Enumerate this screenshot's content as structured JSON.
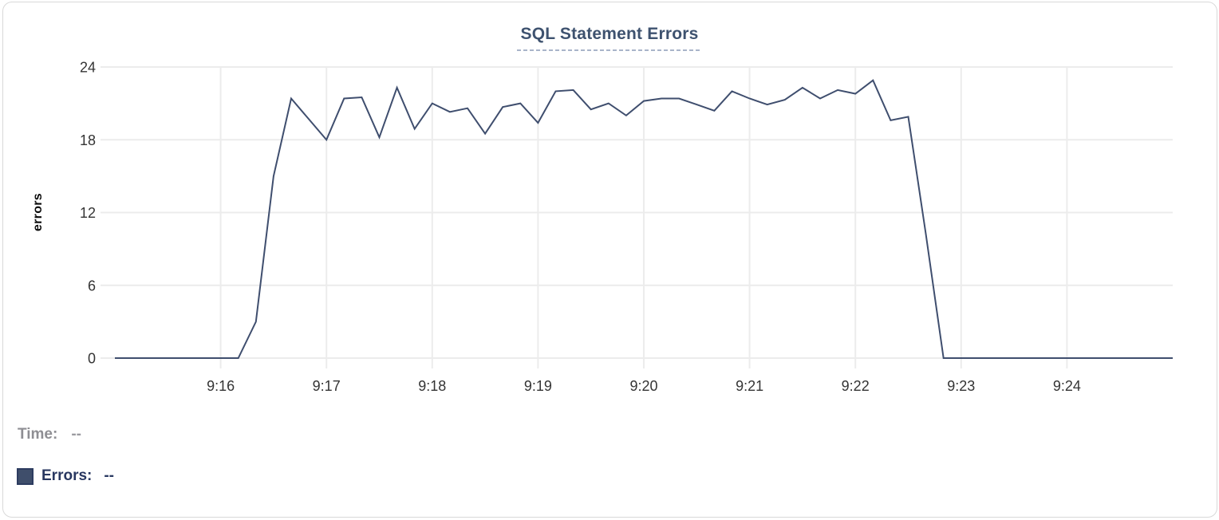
{
  "chart_data": {
    "type": "line",
    "title": "SQL Statement Errors",
    "xlabel": "",
    "ylabel": "errors",
    "ylim": [
      0,
      24
    ],
    "yticks": [
      0,
      6,
      12,
      18,
      24
    ],
    "xtick_labels": [
      "9:16",
      "9:17",
      "9:18",
      "9:19",
      "9:20",
      "9:21",
      "9:22",
      "9:23",
      "9:24"
    ],
    "x_range": [
      "9:15:00",
      "9:25:00"
    ],
    "interval_seconds": 10,
    "grid": true,
    "legend_position": "bottom-left",
    "series": [
      {
        "name": "Errors",
        "color": "#3f4e6e",
        "x": [
          "9:15:00",
          "9:15:10",
          "9:15:20",
          "9:15:30",
          "9:15:40",
          "9:15:50",
          "9:16:00",
          "9:16:10",
          "9:16:20",
          "9:16:30",
          "9:16:40",
          "9:16:50",
          "9:17:00",
          "9:17:10",
          "9:17:20",
          "9:17:30",
          "9:17:40",
          "9:17:50",
          "9:18:00",
          "9:18:10",
          "9:18:20",
          "9:18:30",
          "9:18:40",
          "9:18:50",
          "9:19:00",
          "9:19:10",
          "9:19:20",
          "9:19:30",
          "9:19:40",
          "9:19:50",
          "9:20:00",
          "9:20:10",
          "9:20:20",
          "9:20:30",
          "9:20:40",
          "9:20:50",
          "9:21:00",
          "9:21:10",
          "9:21:20",
          "9:21:30",
          "9:21:40",
          "9:21:50",
          "9:22:00",
          "9:22:10",
          "9:22:20",
          "9:22:30",
          "9:22:40",
          "9:22:50",
          "9:23:00",
          "9:23:10",
          "9:23:20",
          "9:23:30",
          "9:23:40",
          "9:23:50",
          "9:24:00",
          "9:24:10",
          "9:24:20",
          "9:24:30",
          "9:24:40",
          "9:24:50",
          "9:25:00"
        ],
        "values": [
          0,
          0,
          0,
          0,
          0,
          0,
          0,
          0,
          3,
          15,
          21.4,
          19.7,
          18,
          21.4,
          21.5,
          18.2,
          22.3,
          18.9,
          21,
          20.3,
          20.6,
          18.5,
          20.7,
          21,
          19.4,
          22,
          22.1,
          20.5,
          21,
          20,
          21.2,
          21.4,
          21.4,
          20.9,
          20.4,
          22,
          21.4,
          20.9,
          21.3,
          22.3,
          21.4,
          22.1,
          21.8,
          22.9,
          19.6,
          19.9,
          10.2,
          0,
          0,
          0,
          0,
          0,
          0,
          0,
          0,
          0,
          0,
          0,
          0,
          0,
          0
        ]
      }
    ]
  },
  "legend": {
    "time_label": "Time:",
    "time_value": "--",
    "errors_label": "Errors:",
    "errors_value": "--",
    "swatch_color": "#3f4e6b"
  },
  "colors": {
    "line": "#3f4e6e",
    "title_text": "#3e526f",
    "title_underline": "#a9b4c9",
    "gridline": "#ececec",
    "axis_tick_text": "#343434",
    "axis_label_text": "#0b0b0b",
    "legend_time_text": "#8e8e93",
    "legend_errors_text": "#283760",
    "card_border": "#d9d9d9",
    "background": "#ffffff"
  }
}
